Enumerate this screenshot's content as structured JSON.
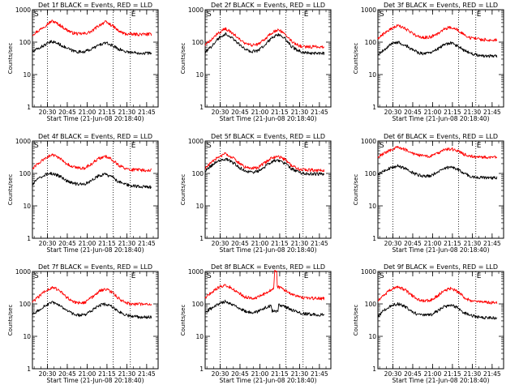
{
  "chart_data": [
    {
      "type": "line",
      "title": "Det 1f BLACK = Events, RED = LLD",
      "xlabel": "Start Time (21-Jun-08 20:18:40)",
      "ylabel": "Counts/sec",
      "yscale": "log",
      "ylim": [
        1,
        1000
      ],
      "ytick_labels": [
        "1",
        "10",
        "100",
        "1000"
      ],
      "xlim_minutes": [
        0,
        95
      ],
      "xtick_labels": [
        "20:30",
        "20:45",
        "21:00",
        "21:15",
        "21:30",
        "21:45"
      ],
      "event_markers": [
        "S",
        "E"
      ],
      "series": [
        {
          "color": "#ff0000",
          "x": [
            0,
            5,
            10,
            15,
            20,
            25,
            30,
            35,
            40,
            45,
            50,
            55,
            60,
            65,
            70,
            75,
            80,
            85,
            90
          ],
          "y": [
            170,
            230,
            330,
            450,
            350,
            250,
            195,
            180,
            185,
            215,
            320,
            420,
            330,
            220,
            180,
            175,
            175,
            175,
            175
          ]
        },
        {
          "color": "#000000",
          "x": [
            0,
            5,
            10,
            15,
            20,
            25,
            30,
            35,
            40,
            45,
            50,
            55,
            60,
            65,
            70,
            75,
            80,
            85,
            90
          ],
          "y": [
            50,
            65,
            85,
            105,
            88,
            68,
            55,
            50,
            52,
            62,
            80,
            95,
            80,
            62,
            52,
            48,
            47,
            46,
            46
          ]
        }
      ]
    },
    {
      "type": "line",
      "title": "Det 2f BLACK = Events, RED = LLD",
      "xlabel": "Start Time (21-Jun-08 20:18:40)",
      "ylabel": "Counts/sec",
      "yscale": "log",
      "ylim": [
        1,
        1000
      ],
      "ytick_labels": [
        "1",
        "10",
        "100",
        "1000"
      ],
      "xlim_minutes": [
        0,
        95
      ],
      "xtick_labels": [
        "20:30",
        "20:45",
        "21:00",
        "21:15",
        "21:30",
        "21:45"
      ],
      "event_markers": [
        "S",
        "E"
      ],
      "series": [
        {
          "color": "#ff0000",
          "x": [
            0,
            5,
            10,
            15,
            20,
            25,
            30,
            35,
            40,
            45,
            50,
            55,
            60,
            65,
            70,
            75,
            80,
            85,
            90
          ],
          "y": [
            80,
            120,
            190,
            260,
            200,
            130,
            90,
            80,
            85,
            120,
            190,
            240,
            190,
            110,
            80,
            72,
            72,
            72,
            72
          ]
        },
        {
          "color": "#000000",
          "x": [
            0,
            5,
            10,
            15,
            20,
            25,
            30,
            35,
            40,
            45,
            50,
            55,
            60,
            65,
            70,
            75,
            80,
            85,
            90
          ],
          "y": [
            45,
            75,
            130,
            180,
            140,
            90,
            60,
            52,
            55,
            80,
            130,
            170,
            130,
            75,
            55,
            48,
            46,
            46,
            46
          ]
        }
      ]
    },
    {
      "type": "line",
      "title": "Det 3f BLACK = Events, RED = LLD",
      "xlabel": "Start Time (21-Jun-08 20:18:40)",
      "ylabel": "Counts/sec",
      "yscale": "log",
      "ylim": [
        1,
        1000
      ],
      "ytick_labels": [
        "1",
        "10",
        "100",
        "1000"
      ],
      "xlim_minutes": [
        0,
        95
      ],
      "xtick_labels": [
        "20:30",
        "20:45",
        "21:00",
        "21:15",
        "21:30",
        "21:45"
      ],
      "event_markers": [
        "S",
        "E"
      ],
      "series": [
        {
          "color": "#ff0000",
          "x": [
            0,
            5,
            10,
            15,
            20,
            25,
            30,
            35,
            40,
            45,
            50,
            55,
            60,
            65,
            70,
            75,
            80,
            85,
            90
          ],
          "y": [
            130,
            190,
            260,
            320,
            270,
            200,
            150,
            140,
            145,
            180,
            250,
            290,
            240,
            170,
            135,
            125,
            120,
            118,
            118
          ]
        },
        {
          "color": "#000000",
          "x": [
            0,
            5,
            10,
            15,
            20,
            25,
            30,
            35,
            40,
            45,
            50,
            55,
            60,
            65,
            70,
            75,
            80,
            85,
            90
          ],
          "y": [
            40,
            60,
            85,
            100,
            85,
            62,
            48,
            44,
            46,
            60,
            82,
            95,
            78,
            55,
            45,
            40,
            38,
            37,
            37
          ]
        }
      ]
    },
    {
      "type": "line",
      "title": "Det 4f BLACK = Events, RED = LLD",
      "xlabel": "Start Time (21-Jun-08 20:18:40)",
      "ylabel": "Counts/sec",
      "yscale": "log",
      "ylim": [
        1,
        1000
      ],
      "ytick_labels": [
        "1",
        "10",
        "100",
        "1000"
      ],
      "xlim_minutes": [
        0,
        95
      ],
      "xtick_labels": [
        "20:30",
        "20:45",
        "21:00",
        "21:15",
        "21:30",
        "21:45"
      ],
      "event_markers": [
        "S",
        "E"
      ],
      "series": [
        {
          "color": "#ff0000",
          "x": [
            0,
            5,
            10,
            15,
            20,
            25,
            30,
            35,
            40,
            45,
            50,
            55,
            60,
            65,
            70,
            75,
            80,
            85,
            90
          ],
          "y": [
            140,
            210,
            300,
            380,
            300,
            210,
            160,
            145,
            150,
            200,
            290,
            340,
            270,
            180,
            140,
            130,
            128,
            125,
            125
          ]
        },
        {
          "color": "#000000",
          "x": [
            0,
            5,
            10,
            15,
            20,
            25,
            30,
            35,
            40,
            45,
            50,
            55,
            60,
            65,
            70,
            75,
            80,
            85,
            90
          ],
          "y": [
            45,
            70,
            95,
            100,
            85,
            62,
            50,
            46,
            48,
            62,
            85,
            95,
            78,
            56,
            46,
            42,
            40,
            38,
            38
          ]
        }
      ]
    },
    {
      "type": "line",
      "title": "Det 5f BLACK = Events, RED = LLD",
      "xlabel": "Start Time (21-Jun-08 20:18:40)",
      "ylabel": "Counts/sec",
      "yscale": "log",
      "ylim": [
        1,
        1000
      ],
      "ytick_labels": [
        "1",
        "10",
        "100",
        "1000"
      ],
      "xlim_minutes": [
        0,
        95
      ],
      "xtick_labels": [
        "20:30",
        "20:45",
        "21:00",
        "21:15",
        "21:30",
        "21:45"
      ],
      "event_markers": [
        "S",
        "E"
      ],
      "series": [
        {
          "color": "#ff0000",
          "x": [
            0,
            5,
            10,
            15,
            20,
            25,
            30,
            35,
            40,
            45,
            50,
            55,
            60,
            65,
            70,
            75,
            80,
            85,
            90
          ],
          "y": [
            140,
            220,
            320,
            400,
            320,
            220,
            160,
            145,
            150,
            210,
            300,
            340,
            270,
            180,
            140,
            130,
            128,
            125,
            125
          ]
        },
        {
          "color": "#000000",
          "x": [
            0,
            5,
            10,
            15,
            20,
            25,
            30,
            35,
            40,
            45,
            50,
            55,
            60,
            65,
            70,
            75,
            80,
            85,
            90
          ],
          "y": [
            120,
            180,
            250,
            280,
            230,
            160,
            120,
            110,
            115,
            160,
            230,
            260,
            210,
            140,
            110,
            100,
            98,
            96,
            96
          ]
        }
      ]
    },
    {
      "type": "line",
      "title": "Det 6f BLACK = Events, RED = LLD",
      "xlabel": "Start Time (21-Jun-08 20:18:40)",
      "ylabel": "Counts/sec",
      "yscale": "log",
      "ylim": [
        1,
        1000
      ],
      "ytick_labels": [
        "1",
        "10",
        "100",
        "1000"
      ],
      "xlim_minutes": [
        0,
        95
      ],
      "xtick_labels": [
        "20:30",
        "20:45",
        "21:00",
        "21:15",
        "21:30",
        "21:45"
      ],
      "event_markers": [
        "S",
        "E"
      ],
      "series": [
        {
          "color": "#ff0000",
          "x": [
            0,
            5,
            10,
            15,
            20,
            25,
            30,
            35,
            40,
            45,
            50,
            55,
            60,
            65,
            70,
            75,
            80,
            85,
            90
          ],
          "y": [
            330,
            420,
            540,
            650,
            560,
            440,
            370,
            340,
            345,
            410,
            520,
            580,
            500,
            390,
            340,
            320,
            315,
            310,
            310
          ]
        },
        {
          "color": "#000000",
          "x": [
            0,
            5,
            10,
            15,
            20,
            25,
            30,
            35,
            40,
            45,
            50,
            55,
            60,
            65,
            70,
            75,
            80,
            85,
            90
          ],
          "y": [
            90,
            120,
            150,
            170,
            145,
            110,
            90,
            82,
            85,
            110,
            145,
            160,
            135,
            100,
            82,
            76,
            74,
            74,
            74
          ]
        }
      ]
    },
    {
      "type": "line",
      "title": "Det 7f BLACK = Events, RED = LLD",
      "xlabel": "Start Time (21-Jun-08 20:18:40)",
      "ylabel": "Counts/sec",
      "yscale": "log",
      "ylim": [
        1,
        1000
      ],
      "ytick_labels": [
        "1",
        "10",
        "100",
        "1000"
      ],
      "xlim_minutes": [
        0,
        95
      ],
      "xtick_labels": [
        "20:30",
        "20:45",
        "21:00",
        "21:15",
        "21:30",
        "21:45"
      ],
      "event_markers": [
        "S",
        "E"
      ],
      "series": [
        {
          "color": "#ff0000",
          "x": [
            0,
            5,
            10,
            15,
            20,
            25,
            30,
            35,
            40,
            45,
            50,
            55,
            60,
            65,
            70,
            75,
            80,
            85,
            90
          ],
          "y": [
            110,
            170,
            250,
            330,
            260,
            170,
            120,
            108,
            112,
            160,
            240,
            290,
            230,
            150,
            110,
            100,
            98,
            96,
            96
          ]
        },
        {
          "color": "#000000",
          "x": [
            0,
            5,
            10,
            15,
            20,
            25,
            30,
            35,
            40,
            45,
            50,
            55,
            60,
            65,
            70,
            75,
            80,
            85,
            90
          ],
          "y": [
            45,
            65,
            90,
            110,
            90,
            65,
            50,
            45,
            47,
            62,
            88,
            100,
            82,
            58,
            46,
            42,
            40,
            39,
            39
          ]
        }
      ]
    },
    {
      "type": "line",
      "title": "Det 8f BLACK = Events, RED = LLD",
      "xlabel": "Start Time (21-Jun-08 20:18:40)",
      "ylabel": "Counts/sec",
      "yscale": "log",
      "ylim": [
        1,
        1000
      ],
      "ytick_labels": [
        "1",
        "10",
        "100",
        "1000"
      ],
      "xlim_minutes": [
        0,
        95
      ],
      "xtick_labels": [
        "20:30",
        "20:45",
        "21:00",
        "21:15",
        "21:30",
        "21:45"
      ],
      "event_markers": [
        "S",
        "E"
      ],
      "series": [
        {
          "color": "#ff0000",
          "x": [
            0,
            5,
            10,
            15,
            20,
            25,
            30,
            35,
            40,
            45,
            50,
            52,
            52.5,
            54,
            54.5,
            57,
            60,
            65,
            70,
            75,
            80,
            85,
            90
          ],
          "y": [
            150,
            230,
            320,
            380,
            310,
            220,
            165,
            150,
            160,
            210,
            270,
            300,
            1000,
            1000,
            350,
            310,
            270,
            200,
            165,
            155,
            150,
            148,
            148
          ]
        },
        {
          "color": "#000000",
          "x": [
            0,
            5,
            10,
            15,
            20,
            25,
            30,
            35,
            40,
            45,
            50,
            50.5,
            55,
            55.5,
            60,
            65,
            70,
            75,
            80,
            85,
            90
          ],
          "y": [
            55,
            75,
            100,
            120,
            100,
            75,
            60,
            55,
            58,
            75,
            90,
            60,
            60,
            95,
            85,
            65,
            55,
            50,
            48,
            46,
            46
          ]
        }
      ]
    },
    {
      "type": "line",
      "title": "Det 9f BLACK = Events, RED = LLD",
      "xlabel": "Start Time (21-Jun-08 20:18:40)",
      "ylabel": "Counts/sec",
      "yscale": "log",
      "ylim": [
        1,
        1000
      ],
      "ytick_labels": [
        "1",
        "10",
        "100",
        "1000"
      ],
      "xlim_minutes": [
        0,
        95
      ],
      "xtick_labels": [
        "20:30",
        "20:45",
        "21:00",
        "21:15",
        "21:30",
        "21:45"
      ],
      "event_markers": [
        "S",
        "E"
      ],
      "series": [
        {
          "color": "#ff0000",
          "x": [
            0,
            5,
            10,
            15,
            20,
            25,
            30,
            35,
            40,
            45,
            50,
            55,
            60,
            65,
            70,
            75,
            80,
            85,
            90
          ],
          "y": [
            120,
            190,
            280,
            340,
            280,
            190,
            140,
            125,
            130,
            175,
            260,
            300,
            240,
            160,
            125,
            115,
            112,
            110,
            110
          ]
        },
        {
          "color": "#000000",
          "x": [
            0,
            5,
            10,
            15,
            20,
            25,
            30,
            35,
            40,
            45,
            50,
            55,
            60,
            65,
            70,
            75,
            80,
            85,
            90
          ],
          "y": [
            40,
            65,
            90,
            100,
            85,
            60,
            48,
            44,
            46,
            60,
            82,
            92,
            76,
            54,
            44,
            40,
            38,
            37,
            37
          ]
        }
      ]
    }
  ]
}
